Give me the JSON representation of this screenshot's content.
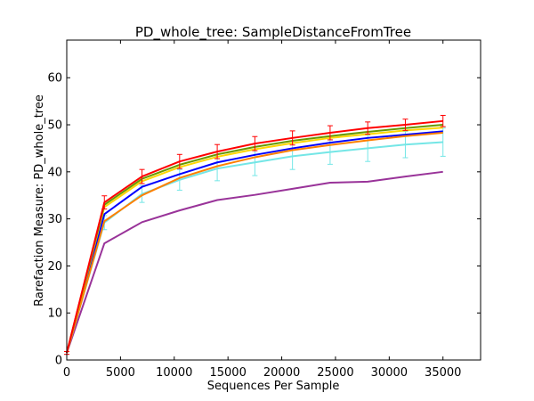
{
  "chart_data": {
    "type": "line",
    "title": "PD_whole_tree: SampleDistanceFromTree",
    "xlabel": "Sequences Per Sample",
    "ylabel": "Rarefaction Measure: PD_whole_tree",
    "xlim": [
      0,
      38500
    ],
    "ylim": [
      0,
      68
    ],
    "xticks": [
      0,
      5000,
      10000,
      15000,
      20000,
      25000,
      30000,
      35000
    ],
    "yticks": [
      0,
      10,
      20,
      30,
      40,
      50,
      60
    ],
    "grid": false,
    "x": [
      1,
      3500,
      7000,
      10500,
      14000,
      17500,
      21000,
      24500,
      28000,
      31500,
      35000
    ],
    "series": [
      {
        "color": "#ff0000",
        "values": [
          1.5,
          33.5,
          39.0,
          42.2,
          44.3,
          46.0,
          47.2,
          48.3,
          49.3,
          50.0,
          50.8
        ],
        "errors": [
          0.3,
          1.4,
          1.5,
          1.5,
          1.5,
          1.5,
          1.5,
          1.5,
          1.3,
          1.2,
          1.2
        ]
      },
      {
        "color": "#669900",
        "values": [
          1.5,
          33.0,
          38.5,
          41.5,
          43.7,
          45.3,
          46.6,
          47.6,
          48.5,
          49.3,
          50.0
        ],
        "errors": []
      },
      {
        "color": "#ffd700",
        "values": [
          1.5,
          32.5,
          38.0,
          41.0,
          43.2,
          44.8,
          46.1,
          47.2,
          48.0,
          48.8,
          49.4
        ],
        "errors": []
      },
      {
        "color": "#ff8000",
        "values": [
          1.5,
          29.5,
          35.0,
          38.7,
          41.2,
          43.1,
          44.6,
          45.7,
          46.7,
          47.6,
          48.3
        ],
        "errors": []
      },
      {
        "color": "#0000ff",
        "values": [
          1.5,
          31.0,
          36.8,
          39.5,
          42.0,
          43.6,
          45.0,
          46.2,
          47.2,
          47.9,
          48.6
        ],
        "errors": []
      },
      {
        "color": "#993399",
        "values": [
          1.5,
          24.8,
          29.3,
          31.8,
          34.0,
          35.1,
          36.4,
          37.7,
          37.9,
          39.0,
          40.0
        ],
        "errors": []
      },
      {
        "color": "#74e6e6",
        "values": [
          1.5,
          29.2,
          35.3,
          38.3,
          40.7,
          42.0,
          43.3,
          44.2,
          45.0,
          45.8,
          46.3
        ],
        "errors": [
          0.3,
          1.5,
          1.8,
          2.2,
          2.6,
          2.8,
          2.8,
          2.6,
          2.8,
          2.8,
          3.0
        ]
      }
    ]
  }
}
